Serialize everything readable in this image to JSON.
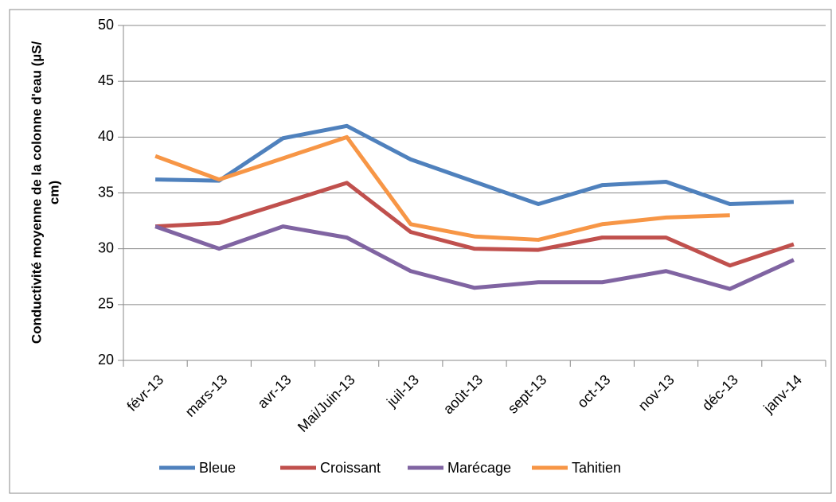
{
  "chart_data": {
    "type": "line",
    "y_label": [
      "Conductivité moyenne de la colonne d'eau (µS/",
      "cm)"
    ],
    "categories": [
      "févr-13",
      "mars-13",
      "avr-13",
      "Mai/Juin-13",
      "juil-13",
      "août-13",
      "sept-13",
      "oct-13",
      "nov-13",
      "déc-13",
      "janv-14"
    ],
    "series": [
      {
        "name": "Bleue",
        "color": "#4f81bd",
        "values": [
          36.2,
          36.1,
          39.9,
          41,
          38,
          36,
          34,
          35.7,
          36,
          34,
          34.2
        ]
      },
      {
        "name": "Croissant",
        "color": "#c0504d",
        "values": [
          32,
          32.3,
          34.1,
          35.9,
          31.5,
          30,
          29.9,
          31,
          31,
          28.5,
          30.4
        ]
      },
      {
        "name": "Marécage",
        "color": "#8064a2",
        "values": [
          32,
          30,
          32,
          31,
          28,
          26.5,
          27,
          27,
          28,
          26.4,
          29
        ]
      },
      {
        "name": "Tahitien",
        "color": "#f79646",
        "values": [
          38.3,
          36.2,
          38.1,
          40,
          32.2,
          31.1,
          30.8,
          32.2,
          32.8,
          33,
          null
        ]
      }
    ],
    "ylim": [
      20,
      50
    ],
    "yticks": [
      20,
      25,
      30,
      35,
      40,
      45,
      50
    ],
    "grid": true,
    "legend": "bottom"
  }
}
